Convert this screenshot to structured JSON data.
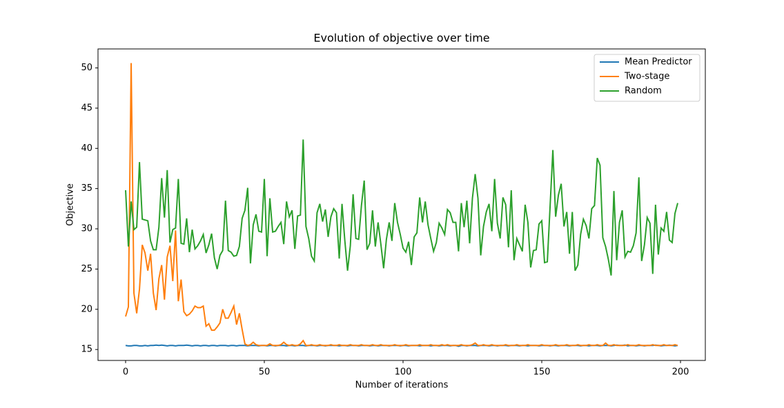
{
  "chart_data": {
    "type": "line",
    "title": "Evolution of objective over time",
    "xlabel": "Number of iterations",
    "ylabel": "Objective",
    "x": [
      0,
      1,
      2,
      3,
      4,
      5,
      6,
      7,
      8,
      9,
      10,
      11,
      12,
      13,
      14,
      15,
      16,
      17,
      18,
      19,
      20,
      21,
      22,
      23,
      24,
      25,
      26,
      27,
      28,
      29,
      30,
      31,
      32,
      33,
      34,
      35,
      36,
      37,
      38,
      39,
      40,
      41,
      42,
      43,
      44,
      45,
      46,
      47,
      48,
      49,
      50,
      51,
      52,
      53,
      54,
      55,
      56,
      57,
      58,
      59,
      60,
      61,
      62,
      63,
      64,
      65,
      66,
      67,
      68,
      69,
      70,
      71,
      72,
      73,
      74,
      75,
      76,
      77,
      78,
      79,
      80,
      81,
      82,
      83,
      84,
      85,
      86,
      87,
      88,
      89,
      90,
      91,
      92,
      93,
      94,
      95,
      96,
      97,
      98,
      99,
      100,
      101,
      102,
      103,
      104,
      105,
      106,
      107,
      108,
      109,
      110,
      111,
      112,
      113,
      114,
      115,
      116,
      117,
      118,
      119,
      120,
      121,
      122,
      123,
      124,
      125,
      126,
      127,
      128,
      129,
      130,
      131,
      132,
      133,
      134,
      135,
      136,
      137,
      138,
      139,
      140,
      141,
      142,
      143,
      144,
      145,
      146,
      147,
      148,
      149,
      150,
      151,
      152,
      153,
      154,
      155,
      156,
      157,
      158,
      159,
      160,
      161,
      162,
      163,
      164,
      165,
      166,
      167,
      168,
      169,
      170,
      171,
      172,
      173,
      174,
      175,
      176,
      177,
      178,
      179,
      180,
      181,
      182,
      183,
      184,
      185,
      186,
      187,
      188,
      189,
      190,
      191,
      192,
      193,
      194,
      195,
      196,
      197,
      198,
      199
    ],
    "series": [
      {
        "name": "Mean Predictor",
        "color": "#1f77b4",
        "values": [
          15.5,
          15.45,
          15.45,
          15.5,
          15.5,
          15.45,
          15.45,
          15.5,
          15.45,
          15.5,
          15.5,
          15.55,
          15.5,
          15.55,
          15.5,
          15.45,
          15.5,
          15.5,
          15.45,
          15.5,
          15.5,
          15.5,
          15.55,
          15.5,
          15.45,
          15.5,
          15.5,
          15.45,
          15.5,
          15.5,
          15.45,
          15.5,
          15.5,
          15.45,
          15.5,
          15.5,
          15.5,
          15.45,
          15.5,
          15.5,
          15.45,
          15.5,
          15.5,
          15.5,
          15.45,
          15.5,
          15.5,
          15.5,
          15.45,
          15.5,
          15.5,
          15.45,
          15.5,
          15.5,
          15.45,
          15.5,
          15.5,
          15.5,
          15.45,
          15.5,
          15.5,
          15.45,
          15.5,
          15.5,
          15.5,
          15.45,
          15.5,
          15.5,
          15.5,
          15.45,
          15.5,
          15.5,
          15.45,
          15.5,
          15.5,
          15.5,
          15.5,
          15.45,
          15.5,
          15.5,
          15.45,
          15.5,
          15.5,
          15.5,
          15.45,
          15.5,
          15.5,
          15.5,
          15.45,
          15.5,
          15.5,
          15.45,
          15.5,
          15.5,
          15.5,
          15.45,
          15.5,
          15.5,
          15.5,
          15.45,
          15.5,
          15.5,
          15.45,
          15.5,
          15.5,
          15.5,
          15.45,
          15.5,
          15.5,
          15.5,
          15.45,
          15.5,
          15.5,
          15.45,
          15.5,
          15.5,
          15.5,
          15.45,
          15.5,
          15.5,
          15.4,
          15.5,
          15.5,
          15.45,
          15.5,
          15.5,
          15.5,
          15.45,
          15.5,
          15.5,
          15.5,
          15.45,
          15.5,
          15.5,
          15.45,
          15.5,
          15.5,
          15.5,
          15.45,
          15.5,
          15.5,
          15.5,
          15.45,
          15.5,
          15.5,
          15.45,
          15.5,
          15.5,
          15.5,
          15.45,
          15.5,
          15.5,
          15.5,
          15.45,
          15.5,
          15.5,
          15.45,
          15.5,
          15.5,
          15.5,
          15.45,
          15.5,
          15.5,
          15.5,
          15.45,
          15.5,
          15.5,
          15.45,
          15.5,
          15.5,
          15.5,
          15.45,
          15.5,
          15.5,
          15.5,
          15.45,
          15.5,
          15.55,
          15.5,
          15.5,
          15.55,
          15.45,
          15.5,
          15.5,
          15.45,
          15.5,
          15.5,
          15.45,
          15.5,
          15.5,
          15.5,
          15.55,
          15.5,
          15.45,
          15.5,
          15.5,
          15.55,
          15.5,
          15.45,
          15.5
        ]
      },
      {
        "name": "Two-stage",
        "color": "#ff7f0e",
        "values": [
          19.1,
          20.3,
          50.6,
          22.0,
          19.5,
          22.5,
          28.0,
          27.0,
          24.8,
          26.9,
          22.0,
          19.9,
          23.8,
          25.5,
          21.2,
          26.5,
          27.9,
          23.5,
          29.8,
          21.0,
          23.7,
          19.7,
          19.2,
          19.4,
          19.8,
          20.4,
          20.2,
          20.2,
          20.4,
          17.9,
          18.2,
          17.4,
          17.4,
          17.8,
          18.3,
          20.0,
          18.9,
          18.9,
          19.6,
          20.4,
          18.1,
          19.5,
          17.5,
          15.7,
          15.5,
          15.6,
          15.9,
          15.6,
          15.5,
          15.5,
          15.5,
          15.5,
          15.7,
          15.5,
          15.5,
          15.5,
          15.6,
          15.9,
          15.6,
          15.5,
          15.6,
          15.5,
          15.5,
          15.7,
          16.1,
          15.5,
          15.5,
          15.6,
          15.5,
          15.5,
          15.6,
          15.5,
          15.5,
          15.5,
          15.6,
          15.5,
          15.5,
          15.6,
          15.5,
          15.5,
          15.5,
          15.6,
          15.5,
          15.5,
          15.5,
          15.6,
          15.5,
          15.5,
          15.5,
          15.6,
          15.5,
          15.5,
          15.6,
          15.5,
          15.5,
          15.5,
          15.5,
          15.6,
          15.5,
          15.5,
          15.5,
          15.6,
          15.5,
          15.5,
          15.5,
          15.5,
          15.6,
          15.5,
          15.5,
          15.5,
          15.6,
          15.5,
          15.5,
          15.5,
          15.6,
          15.5,
          15.6,
          15.5,
          15.5,
          15.5,
          15.5,
          15.6,
          15.5,
          15.5,
          15.5,
          15.6,
          15.8,
          15.5,
          15.5,
          15.6,
          15.5,
          15.5,
          15.6,
          15.5,
          15.5,
          15.5,
          15.5,
          15.6,
          15.5,
          15.5,
          15.5,
          15.6,
          15.5,
          15.5,
          15.5,
          15.6,
          15.5,
          15.5,
          15.5,
          15.5,
          15.6,
          15.5,
          15.5,
          15.5,
          15.5,
          15.6,
          15.5,
          15.5,
          15.5,
          15.6,
          15.5,
          15.5,
          15.5,
          15.6,
          15.5,
          15.5,
          15.5,
          15.6,
          15.5,
          15.5,
          15.6,
          15.5,
          15.5,
          15.8,
          15.5,
          15.5,
          15.6,
          15.5,
          15.5,
          15.5,
          15.5,
          15.6,
          15.5,
          15.5,
          15.5,
          15.6,
          15.5,
          15.5,
          15.5,
          15.5,
          15.6,
          15.5,
          15.5,
          15.5,
          15.6,
          15.5,
          15.5,
          15.5,
          15.6,
          15.5
        ]
      },
      {
        "name": "Random",
        "color": "#2ca02c",
        "values": [
          34.8,
          27.8,
          33.4,
          29.9,
          30.2,
          38.3,
          31.2,
          31.1,
          31.0,
          28.5,
          27.4,
          27.4,
          30.2,
          36.3,
          31.4,
          37.3,
          28.3,
          29.9,
          30.1,
          36.2,
          28.2,
          28.1,
          31.3,
          27.1,
          29.9,
          27.5,
          27.9,
          28.5,
          29.3,
          27.0,
          28.0,
          29.4,
          26.4,
          25.0,
          26.7,
          27.3,
          33.5,
          27.3,
          27.1,
          26.6,
          26.7,
          27.8,
          31.3,
          32.3,
          35.1,
          25.7,
          30.5,
          31.8,
          29.7,
          29.6,
          36.2,
          26.6,
          33.8,
          29.6,
          29.7,
          30.3,
          30.8,
          28.1,
          33.4,
          31.5,
          32.3,
          27.5,
          31.6,
          31.7,
          41.1,
          30.3,
          28.8,
          26.6,
          26.0,
          32.0,
          33.1,
          30.9,
          32.4,
          29.0,
          31.5,
          32.5,
          32.0,
          26.3,
          33.1,
          28.6,
          24.8,
          27.9,
          34.3,
          28.8,
          28.7,
          32.9,
          36.0,
          27.4,
          28.2,
          32.3,
          27.8,
          30.8,
          28.1,
          25.1,
          28.7,
          30.8,
          28.5,
          33.2,
          30.8,
          29.3,
          27.6,
          27.1,
          28.4,
          25.5,
          29.0,
          29.5,
          33.9,
          30.8,
          33.4,
          30.5,
          28.8,
          27.2,
          28.3,
          30.7,
          30.1,
          29.3,
          32.4,
          32.0,
          30.8,
          30.8,
          27.2,
          33.2,
          30.2,
          33.5,
          28.2,
          33.8,
          36.8,
          33.8,
          26.7,
          30.3,
          32.1,
          33.1,
          29.7,
          36.2,
          30.7,
          28.8,
          33.9,
          33.0,
          27.7,
          34.8,
          26.1,
          28.8,
          28.0,
          27.2,
          33.0,
          30.8,
          25.2,
          27.3,
          27.4,
          30.6,
          31.0,
          25.8,
          25.9,
          32.8,
          39.8,
          31.5,
          34.2,
          35.6,
          30.3,
          32.1,
          26.9,
          32.1,
          24.8,
          25.5,
          29.3,
          31.2,
          30.4,
          28.8,
          32.5,
          32.9,
          38.8,
          37.9,
          28.9,
          27.8,
          26.2,
          24.2,
          34.7,
          26.1,
          30.8,
          32.3,
          26.5,
          27.2,
          27.1,
          27.9,
          29.5,
          36.4,
          26.0,
          28.0,
          31.4,
          30.7,
          24.4,
          33.0,
          26.8,
          30.1,
          29.7,
          32.1,
          28.6,
          28.3,
          31.9,
          33.2
        ]
      }
    ],
    "xlim": [
      -9.95,
      208.95
    ],
    "ylim": [
      13.64,
      52.36
    ],
    "xticks": [
      0,
      50,
      100,
      150,
      200
    ],
    "yticks": [
      15,
      20,
      25,
      30,
      35,
      40,
      45,
      50
    ],
    "legend": "upper right"
  }
}
